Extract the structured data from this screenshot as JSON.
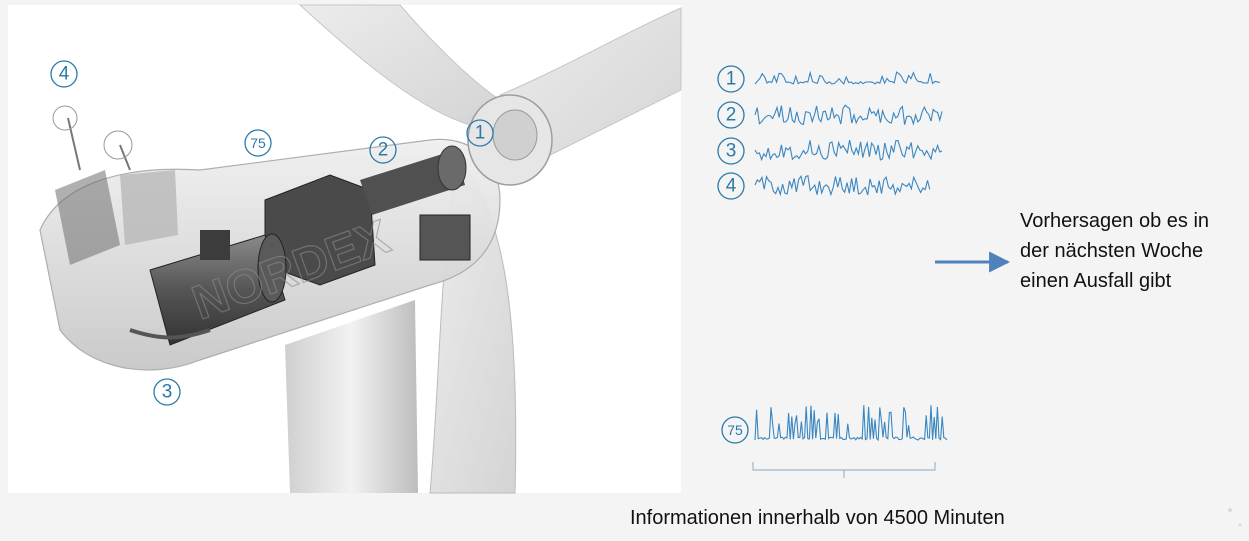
{
  "sensors": [
    {
      "id": "1",
      "label": "1"
    },
    {
      "id": "2",
      "label": "2"
    },
    {
      "id": "3",
      "label": "3"
    },
    {
      "id": "4",
      "label": "4"
    }
  ],
  "aggregate_label": "75",
  "turbine_brand": "NORDEX",
  "prediction_lines": [
    "Vorhersagen ob es in",
    "der nächsten Woche",
    "einen Ausfall gibt"
  ],
  "caption": "Informationen innerhalb von 4500 Minuten",
  "colors": {
    "accent": "#2a7aa8",
    "signal": "#3a86c0",
    "arrow": "#4f82bd"
  }
}
